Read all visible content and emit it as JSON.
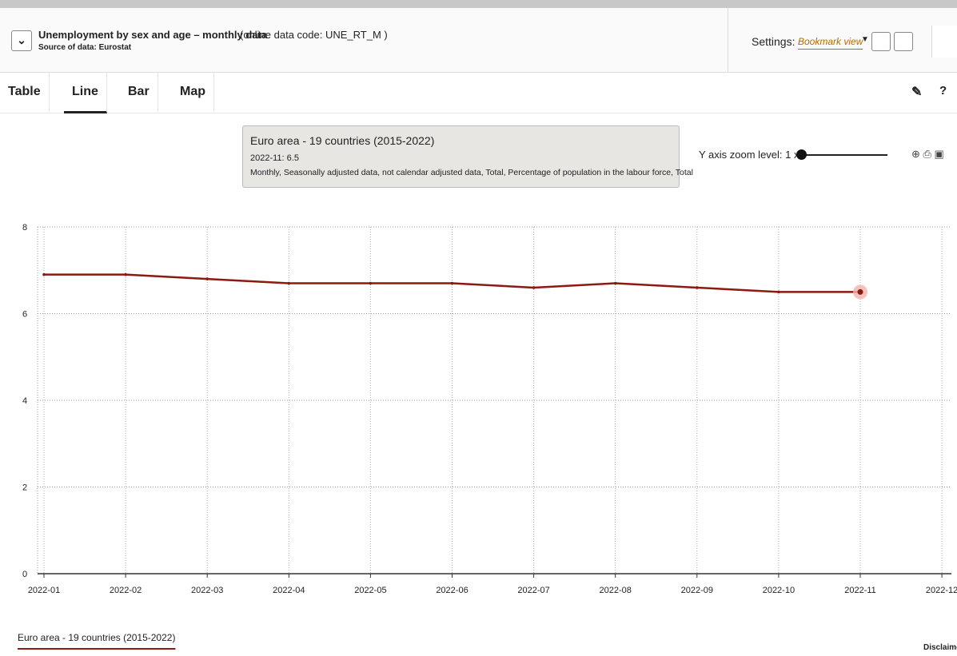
{
  "header": {
    "title": "Unemployment by sex and age – monthly data",
    "code": "(online data code: UNE_RT_M )",
    "source": "Source of data: Eurostat",
    "settings_label": "Settings:",
    "settings_value": "Bookmark view"
  },
  "tabs": [
    "Table",
    "Line",
    "Bar",
    "Map"
  ],
  "tooltip": {
    "title": "Euro area - 19 countries (2015-2022)",
    "point": "2022-11: 6.5",
    "description": "Monthly, Seasonally adjusted data, not calendar adjusted data, Total, Percentage of population in the labour force, Total"
  },
  "zoom": {
    "label": "Y axis zoom level: 1 x"
  },
  "disclaimer": "Disclaime",
  "chart_data": {
    "type": "line",
    "categories": [
      "2022-01",
      "2022-02",
      "2022-03",
      "2022-04",
      "2022-05",
      "2022-06",
      "2022-07",
      "2022-08",
      "2022-09",
      "2022-10",
      "2022-11",
      "2022-12"
    ],
    "series": [
      {
        "name": "Euro area - 19 countries (2015-2022)",
        "color": "#8b1a10",
        "values": [
          6.9,
          6.9,
          6.8,
          6.7,
          6.7,
          6.7,
          6.6,
          6.7,
          6.6,
          6.5,
          6.5,
          null
        ]
      }
    ],
    "ylim": [
      0,
      8
    ],
    "yticks": [
      0,
      2,
      4,
      6,
      8
    ],
    "grid": true
  }
}
